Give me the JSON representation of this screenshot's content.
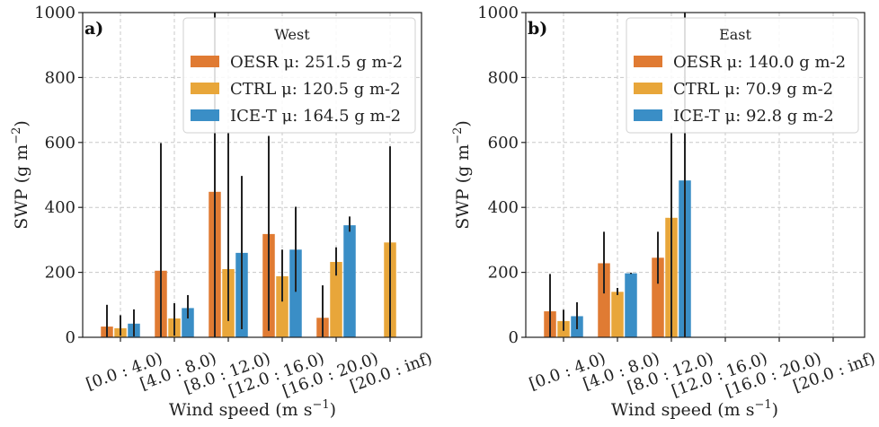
{
  "chart_data": [
    {
      "type": "bar",
      "panel_label": "a)",
      "legend_title": "West",
      "legend_placement": "top-right",
      "xlabel": "Wind speed (m s",
      "xlabel_sup": "−1",
      "xlabel_end": ")",
      "ylabel": "SWP (g m",
      "ylabel_sup": "−2",
      "ylabel_end": ")",
      "ylim": [
        0,
        1000
      ],
      "yticks": [
        "0",
        "200",
        "400",
        "600",
        "800",
        "1000"
      ],
      "grid": true,
      "categories": [
        "[0.0 : 4.0)",
        "[4.0 : 8.0)",
        "[8.0 : 12.0)",
        "[12.0 : 16.0)",
        "[16.0 : 20.0)",
        "[20.0 : inf)"
      ],
      "series": [
        {
          "name": "OESR",
          "mu_label": "OESR μ: 251.5  g m-2",
          "color": "#e07b33",
          "values": [
            33,
            205,
            448,
            318,
            60,
            null
          ],
          "err_low": [
            0,
            0,
            0,
            20,
            0,
            null
          ],
          "err_high": [
            100,
            598,
            1000,
            620,
            160,
            null
          ]
        },
        {
          "name": "CTRL",
          "mu_label": "CTRL μ: 120.5  g m-2",
          "color": "#e8a63a",
          "values": [
            28,
            58,
            210,
            188,
            232,
            292
          ],
          "err_low": [
            5,
            5,
            50,
            110,
            190,
            0
          ],
          "err_high": [
            68,
            105,
            630,
            270,
            277,
            588
          ]
        },
        {
          "name": "ICE-T",
          "mu_label": "ICE-T μ: 164.5  g m-2",
          "color": "#3a8ec6",
          "values": [
            42,
            90,
            260,
            270,
            345,
            null
          ],
          "err_low": [
            3,
            58,
            25,
            140,
            325,
            null
          ],
          "err_high": [
            86,
            130,
            497,
            402,
            372,
            null
          ]
        }
      ]
    },
    {
      "type": "bar",
      "panel_label": "b)",
      "legend_title": "East",
      "legend_placement": "top-right",
      "xlabel": "Wind speed (m s",
      "xlabel_sup": "−1",
      "xlabel_end": ")",
      "ylabel": "SWP (g m",
      "ylabel_sup": "−2",
      "ylabel_end": ")",
      "ylim": [
        0,
        1000
      ],
      "yticks": [
        "0",
        "200",
        "400",
        "600",
        "800",
        "1000"
      ],
      "grid": true,
      "categories": [
        "[0.0 : 4.0)",
        "[4.0 : 8.0)",
        "[8.0 : 12.0)",
        "[12.0 : 16.0)",
        "[16.0 : 20.0)",
        "[20.0 : inf)"
      ],
      "series": [
        {
          "name": "OESR",
          "mu_label": "OESR μ: 140.0  g m-2",
          "color": "#e07b33",
          "values": [
            80,
            228,
            245,
            null,
            null,
            null
          ],
          "err_low": [
            0,
            135,
            165,
            null,
            null,
            null
          ],
          "err_high": [
            195,
            325,
            325,
            null,
            null,
            null
          ]
        },
        {
          "name": "CTRL",
          "mu_label": "CTRL μ: 70.9  g m-2",
          "color": "#e8a63a",
          "values": [
            50,
            140,
            368,
            null,
            null,
            null
          ],
          "err_low": [
            20,
            130,
            0,
            null,
            null,
            null
          ],
          "err_high": [
            85,
            152,
            630,
            null,
            null,
            null
          ]
        },
        {
          "name": "ICE-T",
          "mu_label": "ICE-T μ: 92.8  g m-2",
          "color": "#3a8ec6",
          "values": [
            65,
            197,
            483,
            null,
            null,
            null
          ],
          "err_low": [
            25,
            195,
            0,
            null,
            null,
            null
          ],
          "err_high": [
            108,
            199,
            1000,
            null,
            null,
            null
          ]
        }
      ]
    }
  ]
}
